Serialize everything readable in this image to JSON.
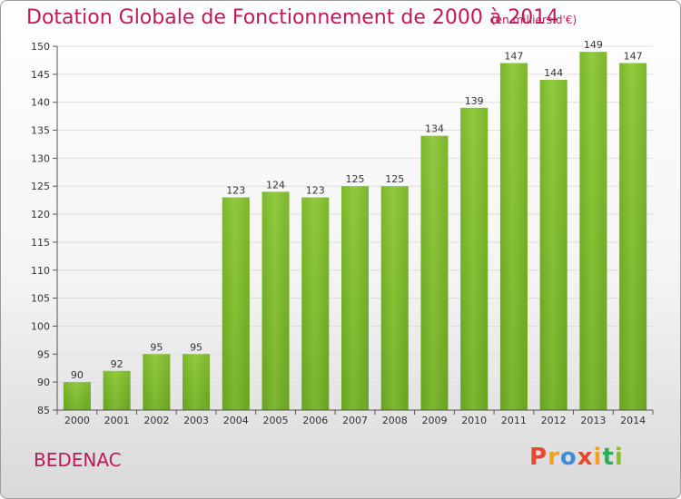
{
  "title": "Dotation Globale de Fonctionnement de 2000 à 2014",
  "subtitle": "(en milliers d'€)",
  "city": "BEDENAC",
  "logo": {
    "text": "Proxiti",
    "colors": [
      "#e8462e",
      "#f4a21a",
      "#3a8fd6",
      "#e8462e",
      "#f4a21a",
      "#2eae5a",
      "#8fbe26"
    ]
  },
  "chart_data": {
    "type": "bar",
    "title": "Dotation Globale de Fonctionnement de 2000 à 2014",
    "subtitle": "(en milliers d'€)",
    "categories": [
      "2000",
      "2001",
      "2002",
      "2003",
      "2004",
      "2005",
      "2006",
      "2007",
      "2008",
      "2009",
      "2010",
      "2011",
      "2012",
      "2013",
      "2014"
    ],
    "values": [
      90,
      92,
      95,
      95,
      123,
      124,
      123,
      125,
      125,
      134,
      139,
      147,
      144,
      149,
      147
    ],
    "ylim": [
      85,
      150
    ],
    "yticks": [
      85,
      90,
      95,
      100,
      105,
      110,
      115,
      120,
      125,
      130,
      135,
      140,
      145,
      150
    ],
    "grid": true,
    "bar_color": "#7dbf2e"
  }
}
